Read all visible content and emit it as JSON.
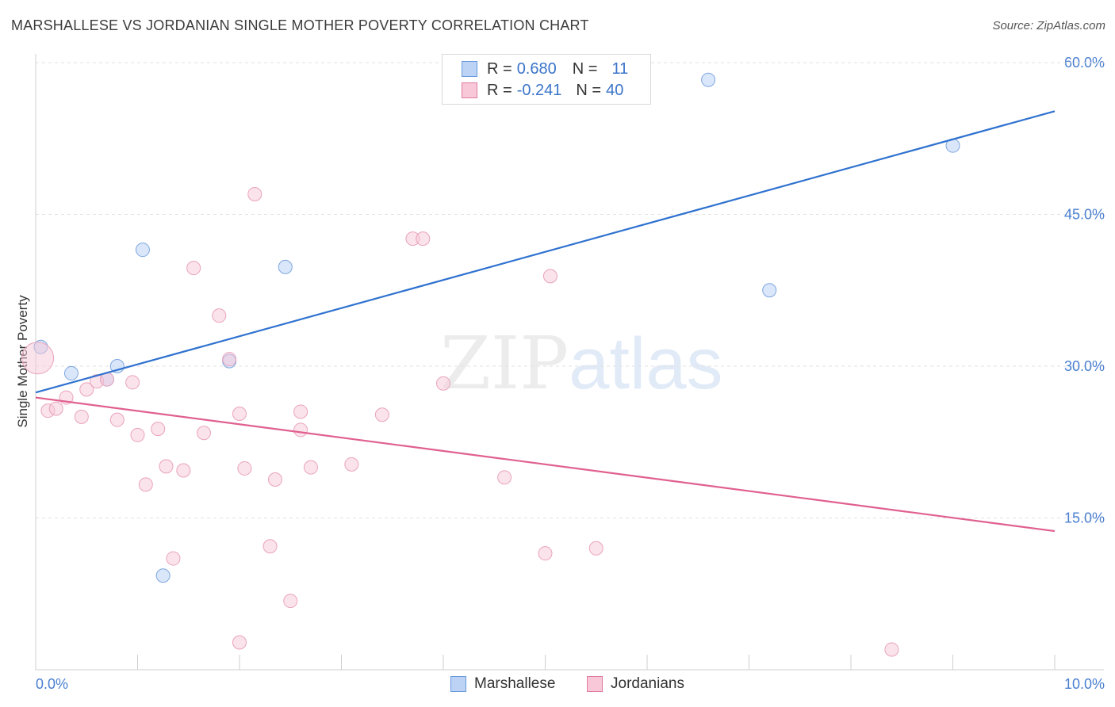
{
  "title": "MARSHALLESE VS JORDANIAN SINGLE MOTHER POVERTY CORRELATION CHART",
  "source": "Source: ZipAtlas.com",
  "watermark": {
    "zip": "ZIP",
    "atlas": "atlas"
  },
  "legend": {
    "marshallese": {
      "r_label": "R = ",
      "r_value": "0.680",
      "n_label": "N = ",
      "n_value": "11",
      "color": "#6699dd",
      "fill": "#bcd3f5"
    },
    "jordanians": {
      "r_label": "R = ",
      "r_value": "-0.241",
      "n_label": "N = ",
      "n_value": "40",
      "color": "#e07ba0",
      "fill": "#f8c8d8"
    }
  },
  "bottom_legend": {
    "marshallese": "Marshallese",
    "jordanians": "Jordanians"
  },
  "chart_data": {
    "type": "scatter",
    "title": "MARSHALLESE VS JORDANIAN SINGLE MOTHER POVERTY CORRELATION CHART",
    "xlabel": "",
    "ylabel": "Single Mother Poverty",
    "xlim": [
      0,
      10
    ],
    "ylim": [
      0,
      60
    ],
    "x_tick_labels": [
      "0.0%",
      "10.0%"
    ],
    "y_tick_labels": [
      "15.0%",
      "30.0%",
      "45.0%",
      "60.0%"
    ],
    "y_ticks": [
      15,
      30,
      45,
      60
    ],
    "grid": true,
    "legend_position": "top-center",
    "series": [
      {
        "name": "Marshallese",
        "color": "#3a74c9",
        "points": [
          [
            0.05,
            31.9
          ],
          [
            0.35,
            29.3
          ],
          [
            0.7,
            28.7
          ],
          [
            0.8,
            30.0
          ],
          [
            1.05,
            41.5
          ],
          [
            1.25,
            9.3
          ],
          [
            1.9,
            30.5
          ],
          [
            2.45,
            39.8
          ],
          [
            6.6,
            58.3
          ],
          [
            7.2,
            37.5
          ],
          [
            9.0,
            51.8
          ]
        ],
        "trend": [
          [
            0,
            27.4
          ],
          [
            10,
            55.2
          ]
        ]
      },
      {
        "name": "Jordanians",
        "color": "#e06090",
        "points": [
          [
            0.02,
            30.8
          ],
          [
            0.12,
            25.6
          ],
          [
            0.2,
            25.8
          ],
          [
            0.3,
            26.9
          ],
          [
            0.45,
            25.0
          ],
          [
            0.5,
            27.7
          ],
          [
            0.6,
            28.5
          ],
          [
            0.7,
            28.7
          ],
          [
            0.8,
            24.7
          ],
          [
            0.95,
            28.4
          ],
          [
            1.0,
            23.2
          ],
          [
            1.08,
            18.3
          ],
          [
            1.2,
            23.8
          ],
          [
            1.28,
            20.1
          ],
          [
            1.35,
            11.0
          ],
          [
            1.45,
            19.7
          ],
          [
            1.55,
            39.7
          ],
          [
            1.65,
            23.4
          ],
          [
            1.8,
            35.0
          ],
          [
            1.9,
            30.7
          ],
          [
            2.0,
            25.3
          ],
          [
            2.0,
            2.7
          ],
          [
            2.05,
            19.9
          ],
          [
            2.15,
            47.0
          ],
          [
            2.3,
            12.2
          ],
          [
            2.35,
            18.8
          ],
          [
            2.5,
            6.8
          ],
          [
            2.6,
            23.7
          ],
          [
            2.6,
            25.5
          ],
          [
            2.7,
            20.0
          ],
          [
            3.1,
            20.3
          ],
          [
            3.4,
            25.2
          ],
          [
            3.7,
            42.6
          ],
          [
            3.8,
            42.6
          ],
          [
            4.0,
            28.3
          ],
          [
            4.6,
            19.0
          ],
          [
            5.0,
            11.5
          ],
          [
            5.05,
            38.9
          ],
          [
            5.5,
            12.0
          ],
          [
            8.4,
            2.0
          ]
        ],
        "trend": [
          [
            0,
            26.9
          ],
          [
            10,
            13.7
          ]
        ]
      }
    ]
  }
}
